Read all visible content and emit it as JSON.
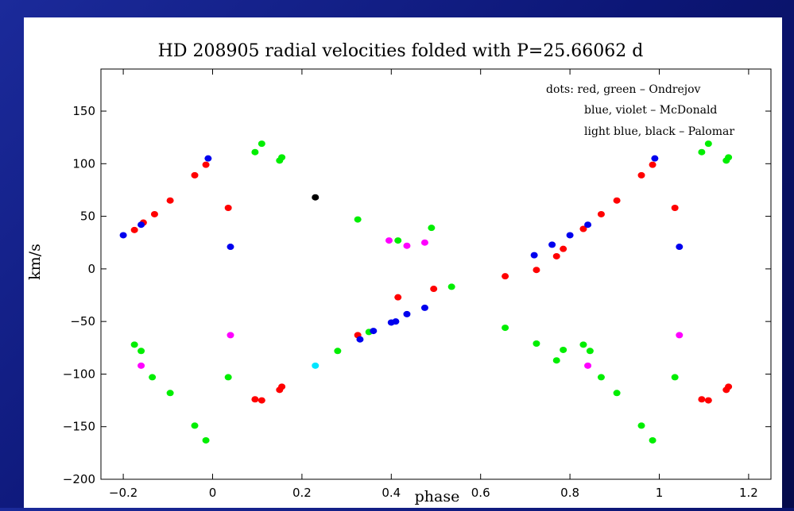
{
  "chart_data": {
    "type": "scatter",
    "title": "HD 208905 radial velocities folded with P=25.66062 d",
    "xlabel": "phase",
    "ylabel": "km/s",
    "xlim": [
      -0.25,
      1.25
    ],
    "ylim": [
      -200,
      190
    ],
    "xticks": [
      -0.2,
      0,
      0.2,
      0.4,
      0.6,
      0.8,
      1,
      1.2
    ],
    "xtick_labels": [
      "−0.2",
      "0",
      "0.2",
      "0.4",
      "0.6",
      "0.8",
      "1",
      "1.2"
    ],
    "yticks": [
      -200,
      -150,
      -100,
      -50,
      0,
      50,
      100,
      150
    ],
    "ytick_labels": [
      "−200",
      "−150",
      "−100",
      "−50",
      "0",
      "50",
      "100",
      "150"
    ],
    "grid": false,
    "legend_position": "top-right",
    "legend_lines": [
      "dots: red, green – Ondrejov",
      "blue, violet – McDonald",
      "light blue, black – Palomar"
    ],
    "series": [
      {
        "color": "#ff0000",
        "points": [
          [
            -0.175,
            37
          ],
          [
            -0.155,
            44
          ],
          [
            -0.13,
            52
          ],
          [
            -0.095,
            65
          ],
          [
            -0.04,
            89
          ],
          [
            -0.015,
            99
          ],
          [
            0.035,
            58
          ],
          [
            0.095,
            -124
          ],
          [
            0.11,
            -125
          ],
          [
            0.15,
            -115
          ],
          [
            0.155,
            -112
          ],
          [
            0.325,
            -63
          ],
          [
            0.415,
            -27
          ],
          [
            0.495,
            -19
          ],
          [
            0.655,
            -7
          ],
          [
            0.725,
            -1
          ],
          [
            0.77,
            12
          ],
          [
            0.785,
            19
          ],
          [
            0.83,
            38
          ],
          [
            0.87,
            52
          ],
          [
            0.905,
            65
          ],
          [
            0.96,
            89
          ],
          [
            0.985,
            99
          ],
          [
            1.035,
            58
          ],
          [
            1.095,
            -124
          ],
          [
            1.11,
            -125
          ],
          [
            1.15,
            -115
          ],
          [
            1.155,
            -112
          ]
        ]
      },
      {
        "color": "#00ee00",
        "points": [
          [
            -0.175,
            -72
          ],
          [
            -0.16,
            -78
          ],
          [
            -0.135,
            -103
          ],
          [
            -0.095,
            -118
          ],
          [
            -0.04,
            -149
          ],
          [
            -0.015,
            -163
          ],
          [
            0.035,
            -103
          ],
          [
            0.095,
            111
          ],
          [
            0.11,
            119
          ],
          [
            0.15,
            103
          ],
          [
            0.155,
            106
          ],
          [
            0.28,
            -78
          ],
          [
            0.325,
            47
          ],
          [
            0.35,
            -60
          ],
          [
            0.415,
            27
          ],
          [
            0.49,
            39
          ],
          [
            0.535,
            -17
          ],
          [
            0.655,
            -56
          ],
          [
            0.725,
            -71
          ],
          [
            0.77,
            -87
          ],
          [
            0.785,
            -77
          ],
          [
            0.83,
            -72
          ],
          [
            0.845,
            -78
          ],
          [
            0.87,
            -103
          ],
          [
            0.905,
            -118
          ],
          [
            0.96,
            -149
          ],
          [
            0.985,
            -163
          ],
          [
            1.035,
            -103
          ],
          [
            1.095,
            111
          ],
          [
            1.11,
            119
          ],
          [
            1.15,
            103
          ],
          [
            1.155,
            106
          ]
        ]
      },
      {
        "color": "#0000ee",
        "points": [
          [
            -0.2,
            32
          ],
          [
            -0.16,
            42
          ],
          [
            -0.01,
            105
          ],
          [
            0.04,
            21
          ],
          [
            0.33,
            -67
          ],
          [
            0.36,
            -59
          ],
          [
            0.4,
            -51
          ],
          [
            0.41,
            -50
          ],
          [
            0.435,
            -43
          ],
          [
            0.475,
            -37
          ],
          [
            0.72,
            13
          ],
          [
            0.76,
            23
          ],
          [
            0.8,
            32
          ],
          [
            0.84,
            42
          ],
          [
            0.99,
            105
          ],
          [
            1.045,
            21
          ]
        ]
      },
      {
        "color": "#ff00ff",
        "points": [
          [
            -0.16,
            -92
          ],
          [
            0.04,
            -63
          ],
          [
            0.395,
            27
          ],
          [
            0.435,
            22
          ],
          [
            0.475,
            25
          ],
          [
            0.84,
            -92
          ],
          [
            1.045,
            -63
          ]
        ]
      },
      {
        "color": "#00e5ff",
        "points": [
          [
            0.23,
            -92
          ]
        ]
      },
      {
        "color": "#000000",
        "points": [
          [
            0.23,
            68
          ]
        ]
      }
    ]
  }
}
